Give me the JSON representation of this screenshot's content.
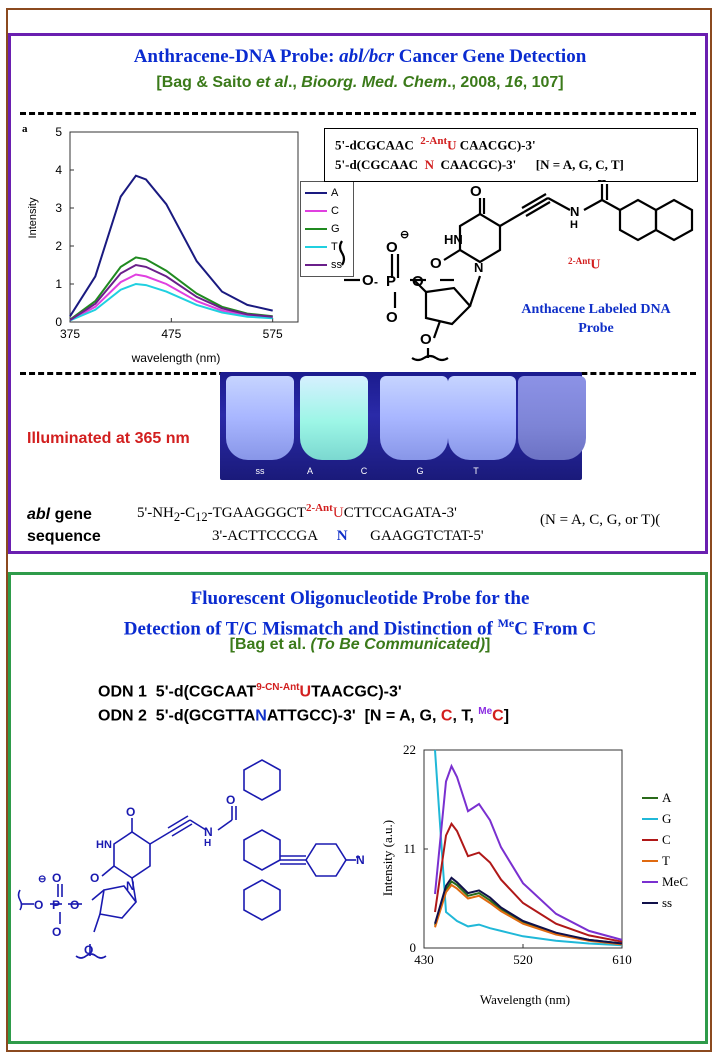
{
  "panel1": {
    "title_parts": [
      "Anthracene-DNA Probe: ",
      "abl/bcr",
      " Cancer Gene Detection"
    ],
    "citation_parts": [
      "[Bag & Saito ",
      "et al",
      "., ",
      "Bioorg. Med. Chem",
      "., 2008, ",
      "16",
      ", 107]"
    ],
    "panel_letter": "a",
    "sequence_box": {
      "line1_prefix": "5'-dCGCAAC",
      "line1_super": "2-Ant",
      "line1_base": "U",
      "line1_suffix": "CAACGC)-3'",
      "line2_prefix": "5'-d(CGCAAC",
      "line2_base": "N",
      "line2_suffix": "CAACGC)-3'",
      "line2_note": "[N = A, G, C, T]"
    },
    "probe_label_super": "2-Ant",
    "probe_label_base": "U",
    "probe_caption": [
      "Anthacene Labeled DNA",
      "Probe"
    ],
    "illuminated": "Illuminated at 365 nm",
    "tubes": [
      "ss",
      "A",
      "C",
      "G",
      "T",
      ""
    ],
    "abl_label": [
      "abl",
      "gene",
      "sequence"
    ],
    "abl_seq1_prefix": "5'-NH",
    "abl_seq1_sub1": "2",
    "abl_seq1_mid": "-C",
    "abl_seq1_sub2": "12",
    "abl_seq1_mid2": "-TGAAGGGCT",
    "abl_seq1_super": "2-Ant",
    "abl_seq1_base": "U",
    "abl_seq1_suffix": "CTTCCAGATA-3'",
    "abl_seq2_prefix": "3'-ACTTCCCGA",
    "abl_seq2_base": "N",
    "abl_seq2_suffix": "GAAGGTCTAT-5'",
    "abl_note": "(N = A, C, G, or T)("
  },
  "panel2": {
    "title_line1": "Fluorescent Oligonucleotide Probe for the",
    "title_line2_prefix": "Detection of T/C Mismatch and Distinction of ",
    "title_line2_super": "Me",
    "title_line2_suffix": "C From C",
    "citation_parts": [
      "[Bag et al. ",
      "(To Be Communicated)",
      "]"
    ],
    "odn1_label": "ODN 1",
    "odn1_prefix": "5'-d(CGCAAT",
    "odn1_super": "9-CN-Ant",
    "odn1_base": "U",
    "odn1_suffix": "TAACGC)-3'",
    "odn2_label": "ODN 2",
    "odn2_prefix": "5'-d(GCGTTA",
    "odn2_base": "N",
    "odn2_suffix": "ATTGCC)-3'",
    "odn2_note_parts": [
      "[N = A, G, ",
      "C",
      ", T, ",
      "Me",
      "C",
      "]"
    ]
  },
  "colors": {
    "frame": "#8b4a1f",
    "panel1_border": "#6a1fb0",
    "panel2_border": "#2e9b4a",
    "title": "#0a2bd0",
    "citation": "#3b7a1a",
    "accent_red": "#d21f1f"
  },
  "chart_data": [
    {
      "type": "line",
      "xlabel": "wavelength (nm)",
      "ylabel": "Intensity",
      "xlim": [
        375,
        600
      ],
      "ylim": [
        0,
        5
      ],
      "xticks": [
        375,
        475,
        575
      ],
      "yticks": [
        0,
        1,
        2,
        3,
        4,
        5
      ],
      "legend_position": "right",
      "series": [
        {
          "name": "A",
          "color": "#1a1a80",
          "peak": 3.85,
          "x": [
            375,
            400,
            425,
            440,
            450,
            470,
            500,
            525,
            550,
            575
          ],
          "values": [
            0.15,
            1.2,
            3.3,
            3.85,
            3.75,
            3.1,
            1.6,
            0.8,
            0.45,
            0.3
          ]
        },
        {
          "name": "C",
          "color": "#e040e0",
          "peak": 1.25,
          "x": [
            375,
            400,
            425,
            440,
            450,
            470,
            500,
            525,
            550,
            575
          ],
          "values": [
            0.05,
            0.4,
            1.05,
            1.25,
            1.2,
            1.0,
            0.55,
            0.3,
            0.18,
            0.12
          ]
        },
        {
          "name": "G",
          "color": "#208a20",
          "peak": 1.7,
          "x": [
            375,
            400,
            425,
            440,
            450,
            470,
            500,
            525,
            550,
            575
          ],
          "values": [
            0.06,
            0.55,
            1.45,
            1.7,
            1.65,
            1.35,
            0.75,
            0.4,
            0.22,
            0.15
          ]
        },
        {
          "name": "T",
          "color": "#20d0e0",
          "peak": 1.0,
          "x": [
            375,
            400,
            425,
            440,
            450,
            470,
            500,
            525,
            550,
            575
          ],
          "values": [
            0.04,
            0.32,
            0.85,
            1.0,
            0.97,
            0.8,
            0.45,
            0.25,
            0.14,
            0.1
          ]
        },
        {
          "name": "ss",
          "color": "#6a1f8a",
          "peak": 1.5,
          "x": [
            375,
            400,
            425,
            440,
            450,
            470,
            500,
            525,
            550,
            575
          ],
          "values": [
            0.05,
            0.48,
            1.28,
            1.5,
            1.45,
            1.2,
            0.66,
            0.36,
            0.2,
            0.14
          ]
        }
      ]
    },
    {
      "type": "line",
      "xlabel": "Wavelength (nm)",
      "ylabel": "Intensity (a.u.)",
      "xlim": [
        430,
        610
      ],
      "ylim": [
        0,
        22
      ],
      "xticks": [
        430,
        520,
        610
      ],
      "yticks": [
        0,
        11,
        22
      ],
      "legend_position": "right",
      "series": [
        {
          "name": "A",
          "color": "#2a6a1a",
          "x": [
            440,
            450,
            455,
            460,
            470,
            480,
            490,
            500,
            520,
            550,
            580,
            610
          ],
          "values": [
            2.5,
            6.5,
            7.4,
            7.0,
            5.8,
            6.1,
            5.3,
            4.3,
            2.9,
            1.6,
            0.9,
            0.5
          ]
        },
        {
          "name": "G",
          "color": "#20b8d8",
          "x": [
            440,
            450,
            455,
            460,
            470,
            480,
            490,
            500,
            520,
            550,
            580,
            610
          ],
          "values": [
            22,
            4.0,
            3.5,
            3.0,
            2.4,
            2.6,
            2.2,
            1.9,
            1.3,
            0.8,
            0.5,
            0.3
          ]
        },
        {
          "name": "C",
          "color": "#b01818",
          "x": [
            440,
            450,
            455,
            460,
            470,
            480,
            490,
            500,
            520,
            550,
            580,
            610
          ],
          "values": [
            4,
            12.5,
            13.8,
            13.0,
            10.2,
            10.6,
            9.5,
            7.6,
            5.0,
            2.7,
            1.4,
            0.7
          ]
        },
        {
          "name": "T",
          "color": "#e06a10",
          "x": [
            440,
            450,
            455,
            460,
            470,
            480,
            490,
            500,
            520,
            550,
            580,
            610
          ],
          "values": [
            2.3,
            6.2,
            7.0,
            6.6,
            5.5,
            5.8,
            5.0,
            4.1,
            2.7,
            1.5,
            0.8,
            0.4
          ]
        },
        {
          "name": "MeC",
          "color": "#7a30d0",
          "x": [
            440,
            450,
            455,
            460,
            470,
            480,
            490,
            500,
            520,
            550,
            580,
            610
          ],
          "values": [
            6,
            18.5,
            20.2,
            19.0,
            15.2,
            16.0,
            14.2,
            11.2,
            7.2,
            3.8,
            1.9,
            0.9
          ]
        },
        {
          "name": "ss",
          "color": "#10104a",
          "x": [
            440,
            450,
            455,
            460,
            470,
            480,
            490,
            500,
            520,
            550,
            580,
            610
          ],
          "values": [
            2.7,
            6.9,
            7.8,
            7.3,
            6.1,
            6.4,
            5.6,
            4.5,
            3.0,
            1.7,
            0.9,
            0.5
          ]
        }
      ]
    }
  ]
}
